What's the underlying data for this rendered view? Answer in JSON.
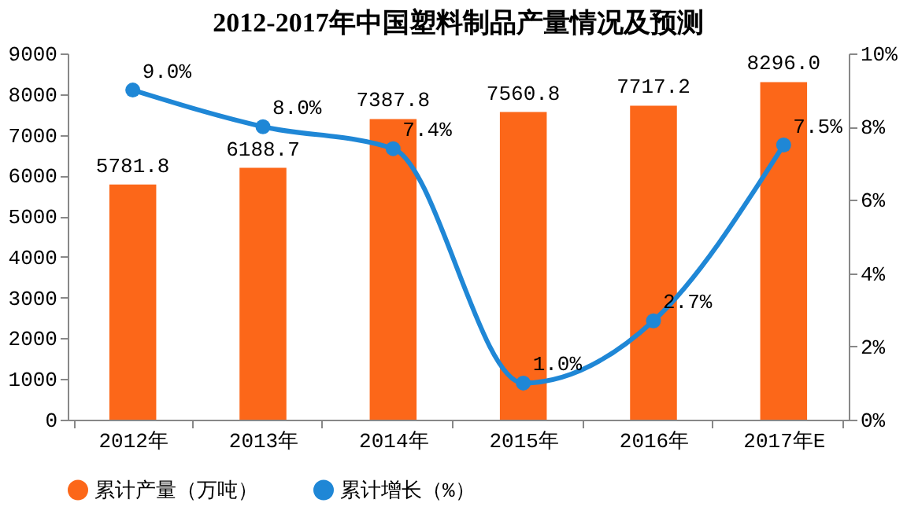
{
  "chart_data": {
    "type": "bar",
    "title": "2012-2017年中国塑料制品产量情况及预测",
    "categories": [
      "2012年",
      "2013年",
      "2014年",
      "2015年",
      "2016年",
      "2017年E"
    ],
    "series": [
      {
        "name": "累计产量（万吨）",
        "color": "#fc6719",
        "values": [
          5781.8,
          6188.7,
          7387.8,
          7560.8,
          7717.2,
          8296.0
        ],
        "value_labels": [
          "5781.8",
          "6188.7",
          "7387.8",
          "7560.8",
          "7717.2",
          "8296.0"
        ]
      },
      {
        "name": "累计增长（%）",
        "type": "line",
        "axis": "y2",
        "color": "#1f87d6",
        "values": [
          9.0,
          8.0,
          7.4,
          1.0,
          2.7,
          7.5
        ],
        "value_labels": [
          "9.0%",
          "8.0%",
          "7.4%",
          "1.0%",
          "2.7%",
          "7.5%"
        ]
      }
    ],
    "ylim": [
      0,
      9000
    ],
    "yticks": [
      0,
      1000,
      2000,
      3000,
      4000,
      5000,
      6000,
      7000,
      8000,
      9000
    ],
    "y2lim": [
      0,
      10
    ],
    "y2ticks": [
      {
        "value": 0,
        "label": "0%"
      },
      {
        "value": 2,
        "label": "2%"
      },
      {
        "value": 4,
        "label": "4%"
      },
      {
        "value": 6,
        "label": "6%"
      },
      {
        "value": 8,
        "label": "8%"
      },
      {
        "value": 10,
        "label": "10%"
      }
    ],
    "legend": "bottom",
    "grid": false,
    "marker": "circle",
    "line_style": "solid"
  }
}
